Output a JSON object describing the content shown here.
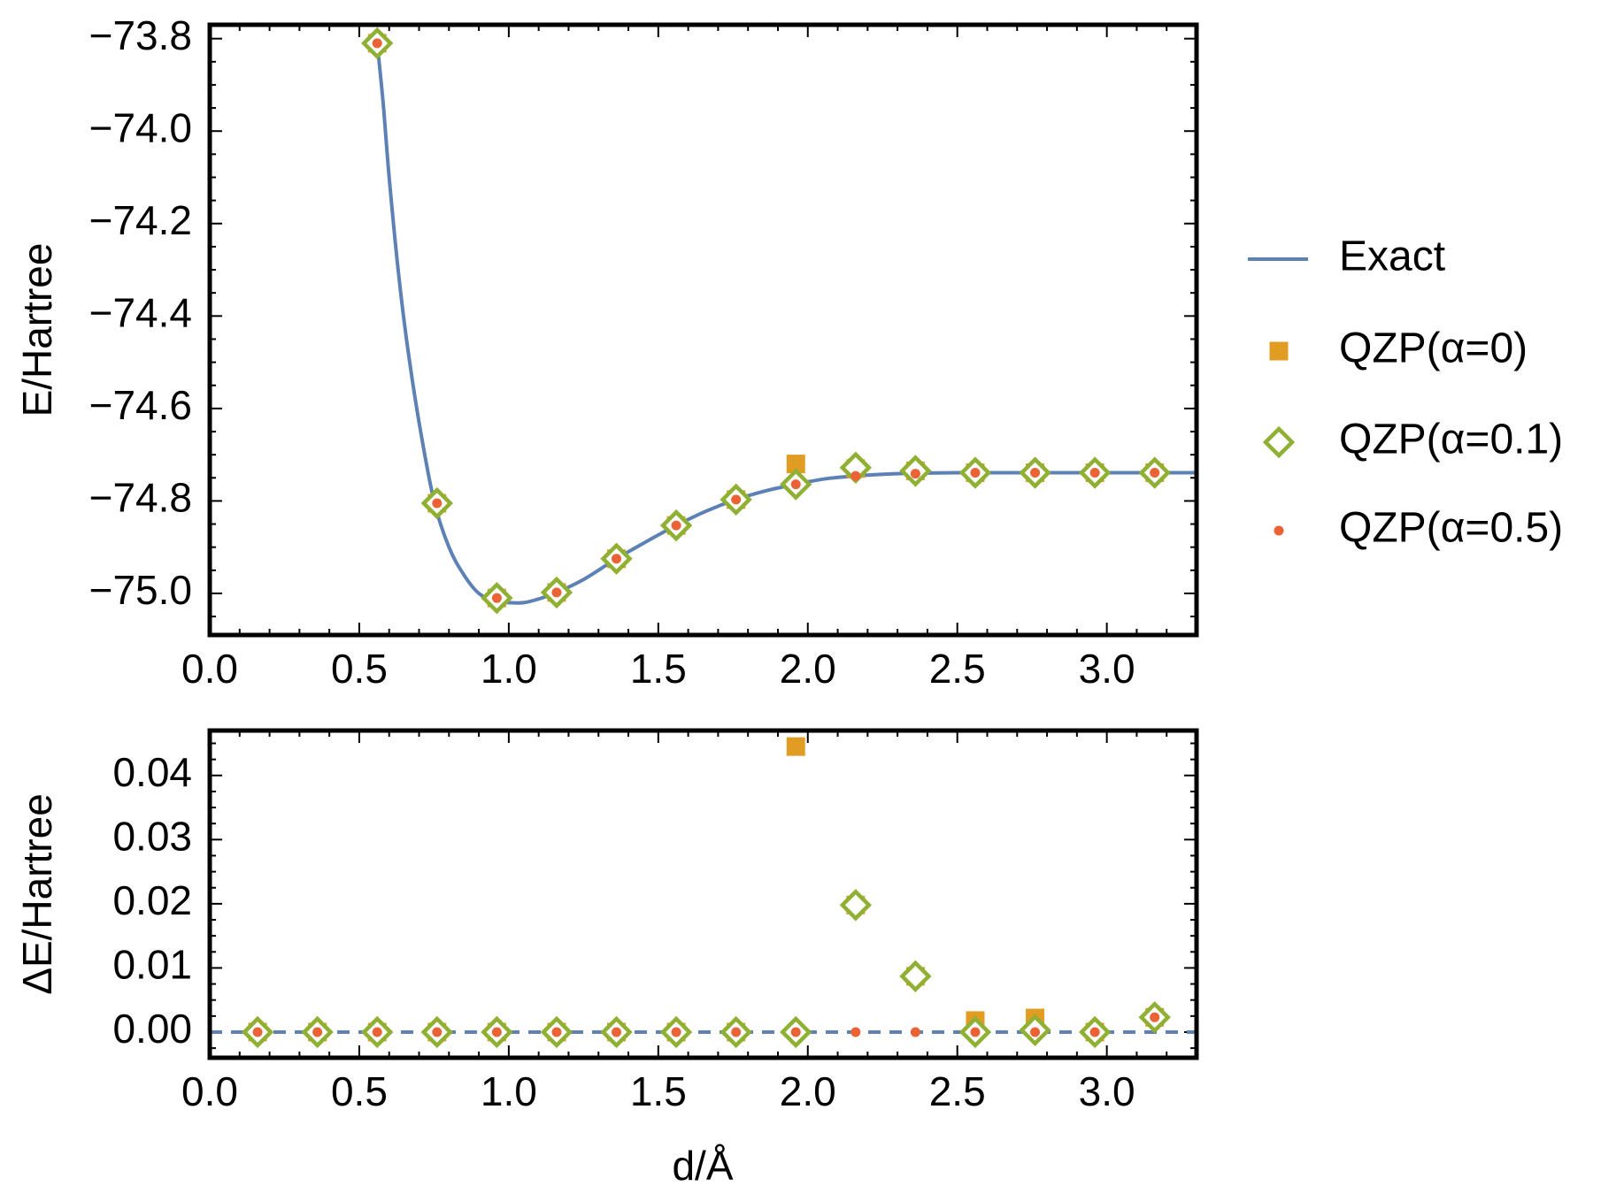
{
  "chart_data": [
    {
      "type": "line",
      "title": "",
      "xlabel": "",
      "ylabel": "E/Hartree",
      "xlim": [
        0.0,
        3.3
      ],
      "ylim": [
        -75.09,
        -73.77
      ],
      "xticks": [
        "0.0",
        "0.5",
        "1.0",
        "1.5",
        "2.0",
        "2.5",
        "3.0"
      ],
      "yticks": [
        "-73.8",
        "-74.0",
        "-74.2",
        "-74.4",
        "-74.6",
        "-74.8",
        "-75.0"
      ],
      "legend_position": "right",
      "series": [
        {
          "name": "Exact",
          "kind": "line",
          "color": "#5E81B5",
          "x": [
            0.56,
            0.58,
            0.6,
            0.63,
            0.66,
            0.7,
            0.75,
            0.8,
            0.85,
            0.9,
            0.95,
            1.0,
            1.05,
            1.1,
            1.16,
            1.25,
            1.36,
            1.46,
            1.56,
            1.66,
            1.76,
            1.86,
            1.96,
            2.06,
            2.16,
            2.26,
            2.36,
            2.5,
            2.7,
            2.9,
            3.1,
            3.3
          ],
          "y": [
            -73.81,
            -73.94,
            -74.1,
            -74.3,
            -74.46,
            -74.63,
            -74.8,
            -74.9,
            -74.96,
            -75.0,
            -75.015,
            -75.02,
            -75.02,
            -75.012,
            -74.998,
            -74.97,
            -74.925,
            -74.888,
            -74.853,
            -74.822,
            -74.797,
            -74.778,
            -74.764,
            -74.752,
            -74.746,
            -74.742,
            -74.74,
            -74.739,
            -74.739,
            -74.739,
            -74.739,
            -74.739
          ]
        },
        {
          "name": "QZP(α=0)",
          "kind": "square",
          "color": "#E19C24",
          "x": [
            0.56,
            0.76,
            0.96,
            1.16,
            1.36,
            1.56,
            1.76,
            1.96,
            2.16,
            2.36,
            2.56,
            2.76,
            2.96,
            3.16
          ],
          "y": [
            -73.81,
            -74.805,
            -75.01,
            -74.998,
            -74.925,
            -74.853,
            -74.797,
            -74.72,
            -74.73,
            -74.735,
            -74.739,
            -74.739,
            -74.739,
            -74.739
          ]
        },
        {
          "name": "QZP(α=0.1)",
          "kind": "diamond",
          "color": "#8FB032",
          "x": [
            0.56,
            0.76,
            0.96,
            1.16,
            1.36,
            1.56,
            1.76,
            1.96,
            2.16,
            2.36,
            2.56,
            2.76,
            2.96,
            3.16
          ],
          "y": [
            -73.81,
            -74.805,
            -75.01,
            -74.998,
            -74.925,
            -74.853,
            -74.797,
            -74.764,
            -74.728,
            -74.735,
            -74.739,
            -74.739,
            -74.739,
            -74.739
          ]
        },
        {
          "name": "QZP(α=0.5)",
          "kind": "dot",
          "color": "#EB6235",
          "x": [
            0.56,
            0.76,
            0.96,
            1.16,
            1.36,
            1.56,
            1.76,
            1.96,
            2.16,
            2.36,
            2.56,
            2.76,
            2.96,
            3.16
          ],
          "y": [
            -73.81,
            -74.805,
            -75.01,
            -74.998,
            -74.925,
            -74.853,
            -74.797,
            -74.764,
            -74.746,
            -74.741,
            -74.739,
            -74.739,
            -74.739,
            -74.739
          ]
        }
      ]
    },
    {
      "type": "scatter",
      "title": "",
      "xlabel": "d/Å",
      "ylabel": "ΔE/Hartree",
      "xlim": [
        0.0,
        3.3
      ],
      "ylim": [
        -0.004,
        0.047
      ],
      "xticks": [
        "0.0",
        "0.5",
        "1.0",
        "1.5",
        "2.0",
        "2.5",
        "3.0"
      ],
      "yticks": [
        "0.00",
        "0.01",
        "0.02",
        "0.03",
        "0.04"
      ],
      "reference_line": {
        "y": 0,
        "style": "dashed",
        "color": "#5E81B5"
      },
      "series": [
        {
          "name": "QZP(α=0)",
          "kind": "square",
          "color": "#E19C24",
          "x": [
            0.16,
            0.36,
            0.56,
            0.76,
            0.96,
            1.16,
            1.36,
            1.56,
            1.76,
            1.96,
            2.16,
            2.36,
            2.56,
            2.76,
            2.96,
            3.16
          ],
          "y": [
            0,
            0,
            0,
            0,
            0,
            0,
            0,
            0,
            0,
            0.0445,
            0.0198,
            0.0087,
            0.0018,
            0.0022,
            0,
            0.0023
          ]
        },
        {
          "name": "QZP(α=0.1)",
          "kind": "diamond",
          "color": "#8FB032",
          "x": [
            0.16,
            0.36,
            0.56,
            0.76,
            0.96,
            1.16,
            1.36,
            1.56,
            1.76,
            1.96,
            2.16,
            2.36,
            2.56,
            2.76,
            2.96,
            3.16
          ],
          "y": [
            0,
            0,
            0,
            0,
            0,
            0,
            0,
            0,
            0,
            0,
            0.0198,
            0.0087,
            0,
            0.0003,
            0,
            0.0023
          ]
        },
        {
          "name": "QZP(α=0.5)",
          "kind": "dot",
          "color": "#EB6235",
          "x": [
            0.16,
            0.36,
            0.56,
            0.76,
            0.96,
            1.16,
            1.36,
            1.56,
            1.76,
            1.96,
            2.16,
            2.36,
            2.56,
            2.76,
            2.96,
            3.16
          ],
          "y": [
            0,
            0,
            0,
            0,
            0,
            0,
            0,
            0,
            0,
            0,
            0,
            0,
            0,
            0,
            0,
            0.0023
          ]
        }
      ]
    }
  ],
  "legend": [
    {
      "label": "Exact",
      "kind": "line",
      "color": "#5E81B5"
    },
    {
      "label": "QZP(α=0)",
      "kind": "square",
      "color": "#E19C24"
    },
    {
      "label": "QZP(α=0.1)",
      "kind": "diamond",
      "color": "#8FB032"
    },
    {
      "label": "QZP(α=0.5)",
      "kind": "dot",
      "color": "#EB6235"
    }
  ]
}
